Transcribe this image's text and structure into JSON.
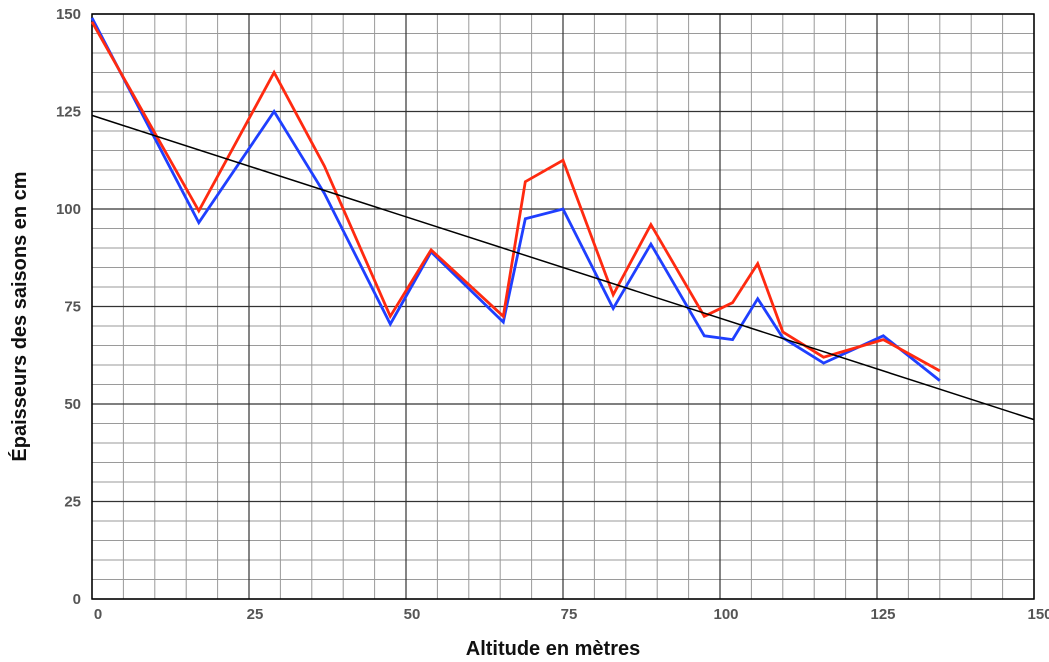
{
  "chart_data": {
    "type": "line",
    "title": "",
    "xlabel": "Altitude en mètres",
    "ylabel": "Épaisseurs des saisons en cm",
    "xlim": [
      0,
      150
    ],
    "ylim": [
      0,
      150
    ],
    "x_ticks": [
      "0",
      "25",
      "50",
      "75",
      "100",
      "125",
      "150"
    ],
    "y_ticks": [
      "0",
      "25",
      "50",
      "75",
      "100",
      "125",
      "150"
    ],
    "grid": true,
    "legend": "none",
    "series": [
      {
        "color": "#1f3fff",
        "x": [
          0,
          17,
          29,
          37,
          47.5,
          54,
          65.5,
          69,
          75,
          83,
          89,
          97.5,
          102,
          106,
          110,
          116.5,
          126,
          135
        ],
        "y": [
          149,
          96.5,
          125,
          104,
          70.5,
          89,
          71,
          97.5,
          100,
          74.5,
          91,
          67.5,
          66.5,
          77,
          67,
          60.5,
          67.5,
          56
        ]
      },
      {
        "color": "#ff2a10",
        "x": [
          0,
          17,
          29,
          37,
          47.5,
          54,
          65.5,
          69,
          75,
          83,
          89,
          97.5,
          102,
          106,
          110,
          116.5,
          126,
          135
        ],
        "y": [
          148,
          99.5,
          135,
          111,
          72.5,
          89.5,
          72.5,
          107,
          112.5,
          78,
          96,
          72.5,
          76,
          86,
          68.5,
          62,
          66.5,
          58.5
        ]
      },
      {
        "color": "#000000",
        "x": [
          0,
          150
        ],
        "y": [
          124,
          46
        ]
      }
    ]
  }
}
